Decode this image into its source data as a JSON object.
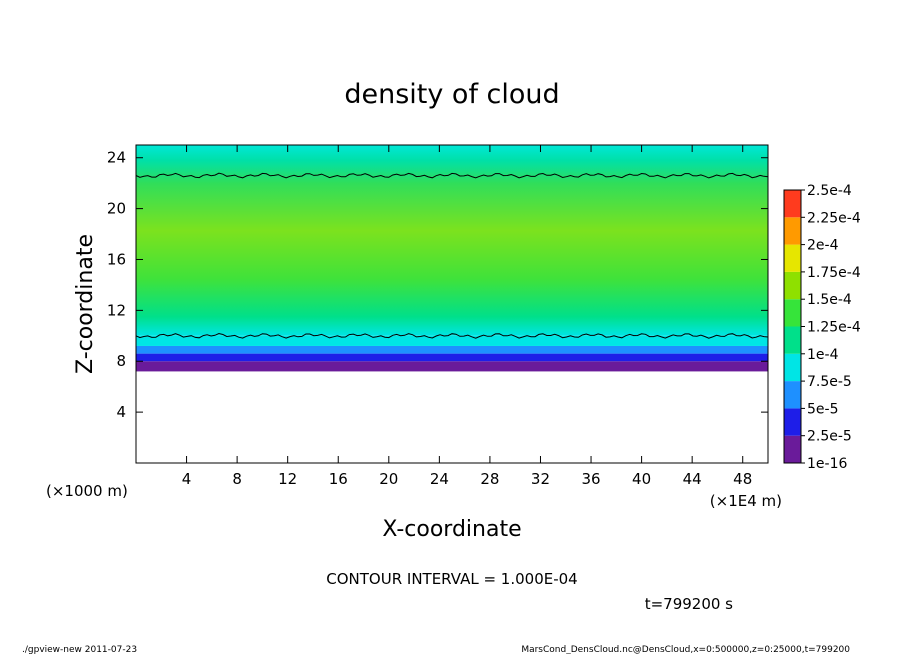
{
  "chart_data": {
    "type": "heatmap",
    "title": "density of cloud",
    "xlabel": "X-coordinate",
    "ylabel": "Z-coordinate",
    "x_ticks": [
      4,
      8,
      12,
      16,
      20,
      24,
      28,
      32,
      36,
      40,
      44,
      48
    ],
    "y_ticks": [
      4,
      8,
      12,
      16,
      20,
      24
    ],
    "xlim": [
      0,
      50
    ],
    "ylim": [
      0,
      25
    ],
    "x_unit_left": "(×1000 m)",
    "x_unit_right": "(×1E4 m)",
    "colorbar": {
      "labels": [
        "1e-16",
        "2.5e-5",
        "5e-5",
        "7.5e-5",
        "1e-4",
        "1.25e-4",
        "1.5e-4",
        "1.75e-4",
        "2e-4",
        "2.25e-4",
        "2.5e-4"
      ],
      "colors": [
        "#6a1b9a",
        "#1e1ee8",
        "#1e90ff",
        "#00e5e5",
        "#00e08a",
        "#36e43a",
        "#8fe000",
        "#e6e600",
        "#ff9a00",
        "#ff3b1e",
        "#ff8080"
      ]
    },
    "bands": [
      {
        "z_from": 7.2,
        "z_to": 8.0,
        "value": "1e-16"
      },
      {
        "z_from": 8.0,
        "z_to": 8.6,
        "value": "2.5e-5"
      },
      {
        "z_from": 8.6,
        "z_to": 9.2,
        "value": "5e-5"
      },
      {
        "z_from": 9.2,
        "z_to": 10.0,
        "value": "7.5e-5"
      },
      {
        "z_from": 10.0,
        "z_to": 12.0,
        "value": "1e-4"
      },
      {
        "z_from": 12.0,
        "z_to": 19.5,
        "value": "1.25e-4"
      },
      {
        "z_from": 19.5,
        "z_to": 22.5,
        "value": "1e-4"
      },
      {
        "z_from": 22.5,
        "z_to": 25.0,
        "value": "7.5e-5"
      }
    ],
    "contour_lines_z": [
      10.0,
      22.6
    ]
  },
  "contour_text": "CONTOUR INTERVAL = 1.000E-04",
  "time_text": "t=799200 s",
  "footer_left": "./gpview-new  2011-07-23",
  "footer_right": "MarsCond_DensCloud.nc@DensCloud,x=0:500000,z=0:25000,t=799200"
}
